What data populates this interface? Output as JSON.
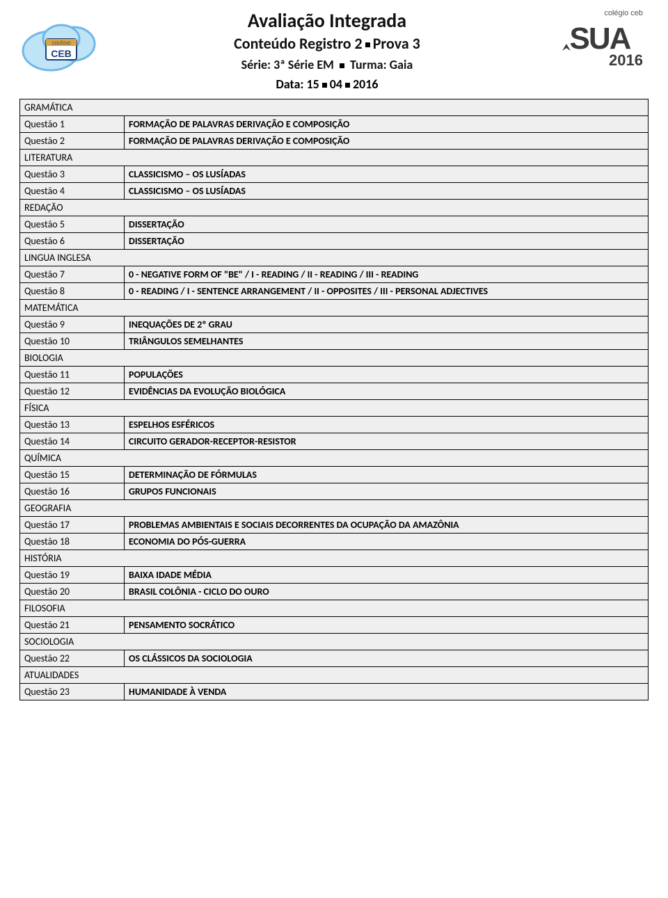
{
  "header": {
    "title": "Avaliação Integrada",
    "subtitle_prefix": "Conteúdo Registro 2",
    "subtitle_suffix": "Prova 3",
    "serie_label": "Série:",
    "serie_value": "3ª Série EM",
    "turma_label": "Turma:",
    "turma_value": "Gaia",
    "data_label": "Data:",
    "data_d": "15",
    "data_m": "04",
    "data_y": "2016"
  },
  "colors": {
    "cell_bg": "#efefef",
    "border": "#000000",
    "text": "#111111"
  },
  "sections": [
    {
      "subject": "GRAMÁTICA",
      "rows": [
        {
          "q": "Questão 1",
          "c": "FORMAÇÃO DE PALAVRAS DERIVAÇÃO E COMPOSIÇÃO"
        },
        {
          "q": "Questão 2",
          "c": "FORMAÇÃO DE PALAVRAS DERIVAÇÃO E COMPOSIÇÃO"
        }
      ]
    },
    {
      "subject": "LITERATURA",
      "rows": [
        {
          "q": "Questão 3",
          "c": "CLASSICISMO – OS LUSÍADAS"
        },
        {
          "q": "Questão 4",
          "c": "CLASSICISMO – OS LUSÍADAS"
        }
      ]
    },
    {
      "subject": "REDAÇÃO",
      "rows": [
        {
          "q": "Questão 5",
          "c": "DISSERTAÇÃO"
        },
        {
          "q": "Questão 6",
          "c": "DISSERTAÇÃO"
        }
      ]
    },
    {
      "subject": "LINGUA INGLESA",
      "rows": [
        {
          "q": "Questão 7",
          "c": "0 - NEGATIVE FORM OF \"BE\" / I - READING / II - READING / III - READING"
        },
        {
          "q": "Questão 8",
          "c": "0 - READING / I - SENTENCE ARRANGEMENT / II - OPPOSITES / III - PERSONAL ADJECTIVES"
        }
      ]
    },
    {
      "subject": "MATEMÁTICA",
      "rows": [
        {
          "q": "Questão 9",
          "c": "INEQUAÇÕES DE 2º GRAU"
        },
        {
          "q": "Questão 10",
          "c": "TRIÂNGULOS SEMELHANTES"
        }
      ]
    },
    {
      "subject": "BIOLOGIA",
      "rows": [
        {
          "q": "Questão 11",
          "c": "POPULAÇÕES"
        },
        {
          "q": "Questão 12",
          "c": "EVIDÊNCIAS DA EVOLUÇÃO BIOLÓGICA"
        }
      ]
    },
    {
      "subject": "FÍSICA",
      "rows": [
        {
          "q": "Questão 13",
          "c": "ESPELHOS ESFÉRICOS"
        },
        {
          "q": "Questão 14",
          "c": "CIRCUITO GERADOR-RECEPTOR-RESISTOR"
        }
      ]
    },
    {
      "subject": "QUÍMICA",
      "rows": [
        {
          "q": "Questão 15",
          "c": "DETERMINAÇÃO DE FÓRMULAS"
        },
        {
          "q": "Questão 16",
          "c": "GRUPOS FUNCIONAIS"
        }
      ]
    },
    {
      "subject": "GEOGRAFIA",
      "rows": [
        {
          "q": "Questão 17",
          "c": "PROBLEMAS AMBIENTAIS E SOCIAIS DECORRENTES DA OCUPAÇÃO DA AMAZÔNIA"
        },
        {
          "q": "Questão 18",
          "c": "ECONOMIA DO PÓS-GUERRA"
        }
      ]
    },
    {
      "subject": "HISTÓRIA",
      "rows": [
        {
          "q": "Questão 19",
          "c": "BAIXA IDADE MÉDIA"
        },
        {
          "q": "Questão 20",
          "c": "BRASIL COLÔNIA - CICLO DO OURO"
        }
      ]
    },
    {
      "subject": "FILOSOFIA",
      "rows": [
        {
          "q": "Questão 21",
          "c": "PENSAMENTO SOCRÁTICO"
        }
      ]
    },
    {
      "subject": "SOCIOLOGIA",
      "rows": [
        {
          "q": "Questão 22",
          "c": "OS CLÁSSICOS DA SOCIOLOGIA"
        }
      ]
    },
    {
      "subject": "ATUALIDADES",
      "rows": [
        {
          "q": "Questão 23",
          "c": "HUMANIDADE À VENDA"
        }
      ]
    }
  ]
}
